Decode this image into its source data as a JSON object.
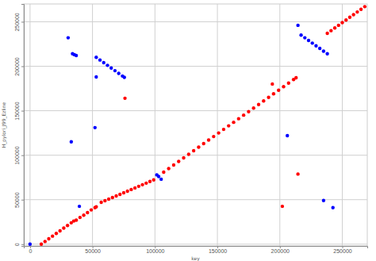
{
  "chart_data": {
    "type": "scatter",
    "x_label": "key",
    "y_label": "H_pylori_J99_Ezline",
    "xlim": [
      -5000,
      270000
    ],
    "ylim": [
      -2000,
      270000
    ],
    "xticks": [
      0,
      50000,
      100000,
      150000,
      200000,
      250000
    ],
    "yticks": [
      0,
      50000,
      100000,
      150000,
      200000,
      250000
    ],
    "grid": true,
    "series": [
      {
        "color": "#ff0000",
        "marker": "circle",
        "x": [
          9000,
          12000,
          15000,
          18000,
          21000,
          24000,
          27000,
          30000,
          33000,
          35000,
          37000,
          40000,
          43000,
          46000,
          49000,
          52000,
          53000,
          57000,
          60000,
          63000,
          66000,
          69000,
          72000,
          75000,
          78000,
          81000,
          84000,
          87000,
          90000,
          93000,
          96000,
          99000,
          107000,
          111000,
          115000,
          119000,
          123000,
          127000,
          131000,
          135000,
          139000,
          143000,
          147000,
          151000,
          155000,
          159000,
          163000,
          167000,
          171000,
          175000,
          179000,
          183000,
          187000,
          191000,
          195000,
          199000,
          203000,
          207000,
          211000,
          213000,
          238000,
          241000,
          244000,
          247000,
          250000,
          253000,
          256000,
          259000,
          262000,
          265000,
          268000,
          76000,
          194000,
          202000,
          214500
        ],
        "values": [
          0,
          3000,
          6000,
          9000,
          12000,
          15000,
          18000,
          21000,
          24000,
          26000,
          27000,
          30000,
          32500,
          35500,
          38500,
          41000,
          42000,
          47000,
          48800,
          50600,
          52400,
          54200,
          56000,
          57800,
          59600,
          61400,
          63200,
          65000,
          66800,
          68600,
          70400,
          72200,
          81000,
          85000,
          89000,
          93000,
          97000,
          101000,
          105000,
          109000,
          113000,
          117000,
          121000,
          125000,
          129000,
          133000,
          137000,
          141000,
          145000,
          149000,
          153000,
          157000,
          161000,
          165000,
          169000,
          173000,
          177000,
          181000,
          185000,
          187000,
          237000,
          240000,
          243000,
          246000,
          249000,
          252000,
          255000,
          258000,
          261000,
          264000,
          267000,
          164000,
          180000,
          42500,
          78800
        ]
      },
      {
        "color": "#0000ff",
        "marker": "circle",
        "x": [
          0,
          30500,
          33000,
          39500,
          52000,
          53000,
          206000,
          214500,
          235000,
          242500,
          34000,
          35500,
          37000,
          53000,
          56000,
          59000,
          62000,
          65000,
          68000,
          71000,
          74000,
          75500,
          101500,
          103000,
          105000,
          217000,
          220000,
          223000,
          226000,
          229000,
          232000,
          235000,
          238000
        ],
        "values": [
          0,
          232000,
          115000,
          42500,
          131000,
          188000,
          122000,
          246000,
          49000,
          41000,
          214000,
          213000,
          212000,
          210000,
          207000,
          204000,
          201000,
          198000,
          195000,
          192000,
          189000,
          187500,
          77900,
          76000,
          73000,
          235000,
          232000,
          229000,
          226000,
          223000,
          220000,
          217000,
          214000
        ]
      }
    ]
  }
}
